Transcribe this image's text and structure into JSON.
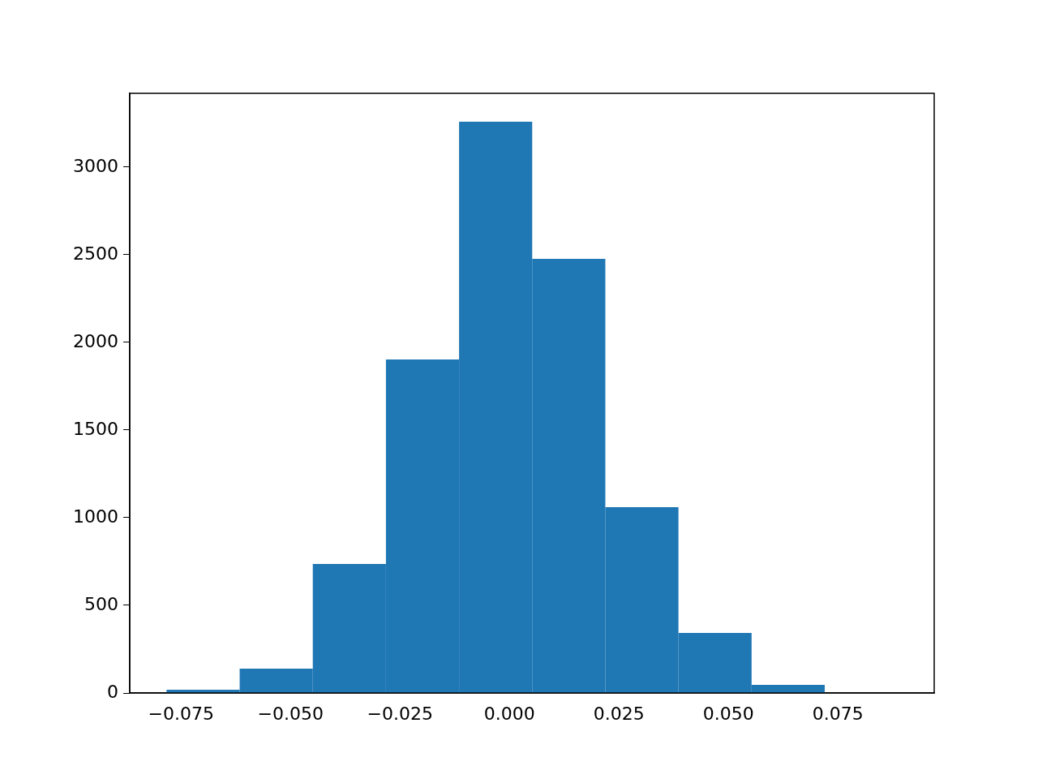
{
  "chart_data": {
    "type": "histogram",
    "bins": [
      -0.0783,
      -0.0616,
      -0.0449,
      -0.0282,
      -0.0115,
      0.0052,
      0.0219,
      0.0386,
      0.0553,
      0.072,
      0.0887
    ],
    "values": [
      18,
      139,
      736,
      1903,
      3259,
      2477,
      1060,
      343,
      46,
      null
    ],
    "color": "#1f77b4",
    "xlim": [
      -0.0867,
      0.097
    ],
    "xticks": [
      {
        "value": -0.075,
        "label": "−0.075"
      },
      {
        "value": -0.05,
        "label": "−0.050"
      },
      {
        "value": -0.025,
        "label": "−0.025"
      },
      {
        "value": 0,
        "label": "0.000"
      },
      {
        "value": 0.025,
        "label": "0.025"
      },
      {
        "value": 0.05,
        "label": "0.050"
      },
      {
        "value": 0.075,
        "label": "0.075"
      }
    ],
    "ylim": [
      0,
      3421
    ],
    "yticks": [
      0,
      500,
      1000,
      1500,
      2000,
      2500,
      3000
    ],
    "grid": false,
    "legend": false
  }
}
